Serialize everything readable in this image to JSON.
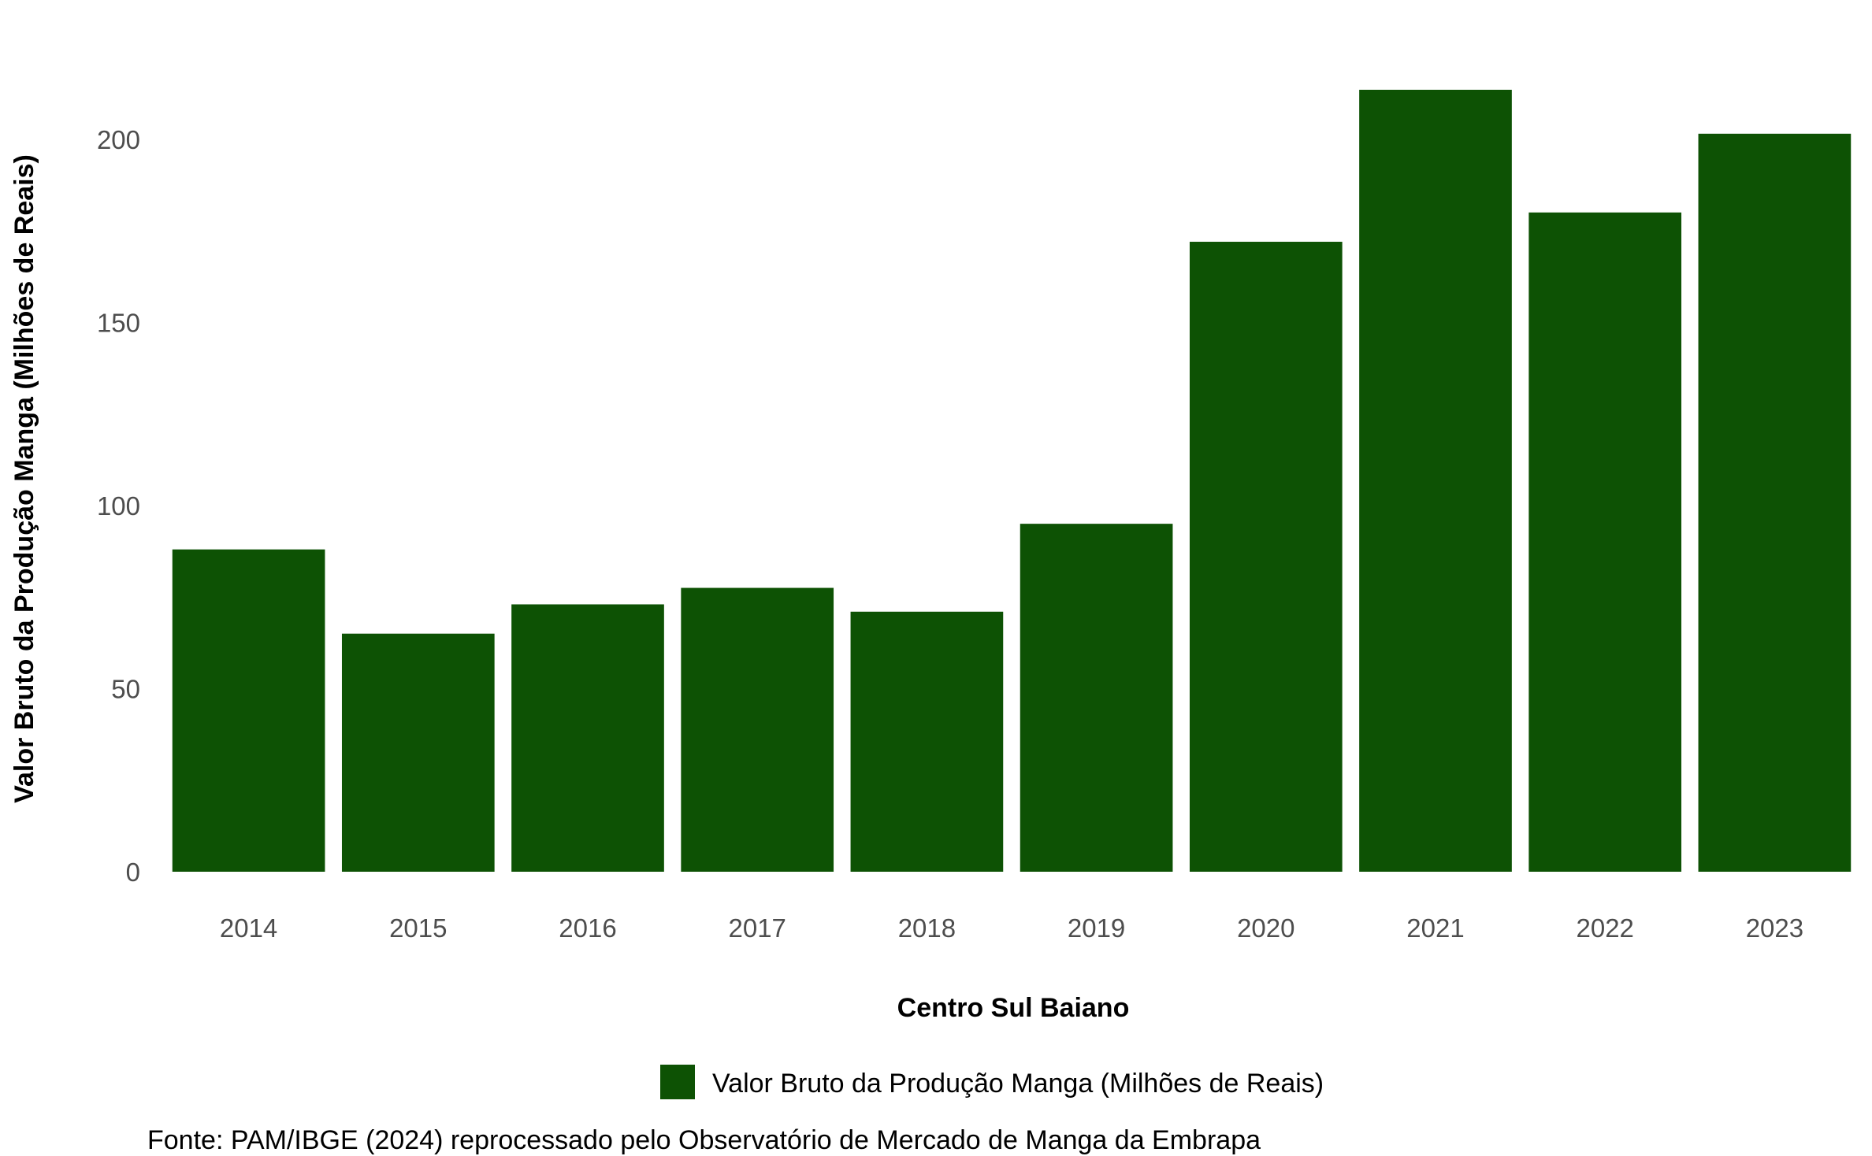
{
  "chart_data": {
    "type": "bar",
    "categories": [
      "2014",
      "2015",
      "2016",
      "2017",
      "2018",
      "2019",
      "2020",
      "2021",
      "2022",
      "2023"
    ],
    "series": [
      {
        "name": "Valor Bruto da Produção Manga (Milhões de Reais)",
        "values": [
          88,
          65,
          73,
          77.5,
          71,
          95,
          172,
          213.5,
          180,
          201.5
        ],
        "color": "#0d5204"
      }
    ],
    "xlabel": "Centro Sul Baiano",
    "ylabel": "Valor Bruto da Produção Manga (Milhões de Reais)",
    "ylim": [
      0,
      213.5
    ],
    "yticks": [
      0,
      50,
      100,
      150,
      200
    ],
    "grid": false,
    "legend_position": "bottom",
    "caption": "Fonte: PAM/IBGE (2024) reprocessado pelo Observatório de Mercado de Manga da Embrapa"
  }
}
